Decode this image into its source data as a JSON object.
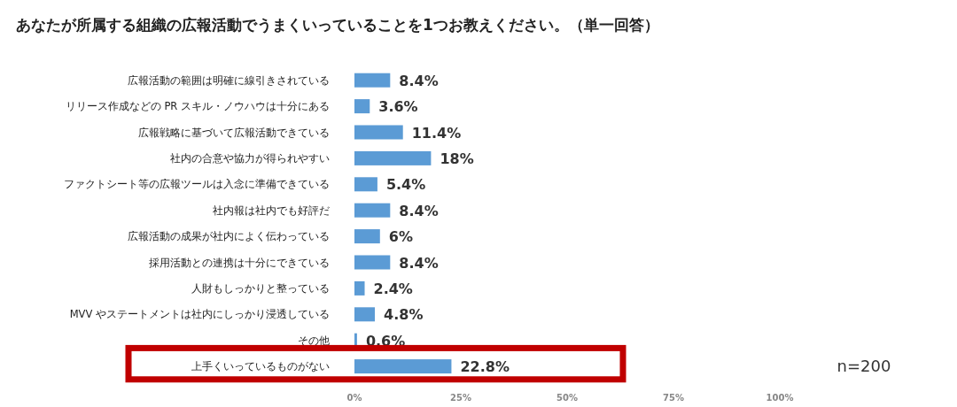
{
  "chart_data": {
    "type": "bar",
    "orientation": "horizontal",
    "title": "あなたが所属する組織の広報活動でうまくいっていることを1つお教えください。（単一回答）",
    "categories": [
      "広報活動の範囲は明確に線引きされている",
      "リリース作成などの PR スキル・ノウハウは十分にある",
      "広報戦略に基づいて広報活動できている",
      "社内の合意や協力が得られやすい",
      "ファクトシート等の広報ツールは入念に準備できている",
      "社内報は社内でも好評だ",
      "広報活動の成果が社内によく伝わっている",
      "採用活動との連携は十分にできている",
      "人財もしっかりと整っている",
      "MVV やステートメントは社内にしっかり浸透している",
      "その他",
      "上手くいっているものがない"
    ],
    "values": [
      8.4,
      3.6,
      11.4,
      18,
      5.4,
      8.4,
      6,
      8.4,
      2.4,
      4.8,
      0.6,
      22.8
    ],
    "value_labels": [
      "8.4%",
      "3.6%",
      "11.4%",
      "18%",
      "5.4%",
      "8.4%",
      "6%",
      "8.4%",
      "2.4%",
      "4.8%",
      "0.6%",
      "22.8%"
    ],
    "color": "#5b9bd5",
    "xlim": [
      0,
      100
    ],
    "xticks": [
      {
        "value": 0,
        "label": "0%"
      },
      {
        "value": 25,
        "label": "25%"
      },
      {
        "value": 50,
        "label": "50%"
      },
      {
        "value": 75,
        "label": "75%"
      },
      {
        "value": 100,
        "label": "100%"
      }
    ],
    "grid": false,
    "annotations": [
      "n=200"
    ]
  }
}
